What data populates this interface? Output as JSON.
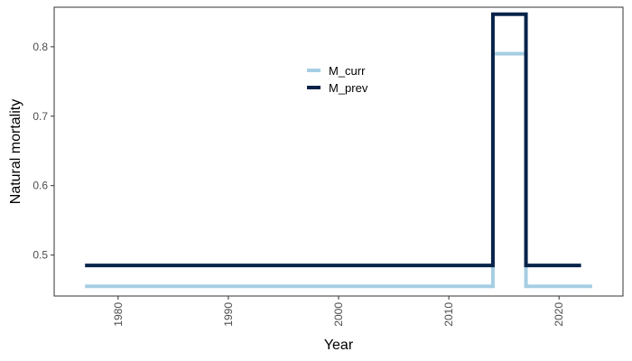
{
  "chart_data": {
    "type": "line",
    "step": "hv",
    "xlabel": "Year",
    "ylabel": "Natural mortality",
    "xlim": [
      1974.2,
      2025.8
    ],
    "ylim": [
      0.441,
      0.857
    ],
    "x_ticks": [
      1980,
      1990,
      2000,
      2010,
      2020
    ],
    "y_ticks": [
      0.5,
      0.6,
      0.7,
      0.8
    ],
    "y_tick_labels": [
      "0.5",
      "0.6",
      "0.7",
      "0.8"
    ],
    "grid": false,
    "legend": {
      "placement": "top-center"
    },
    "series": [
      {
        "name": "M_curr",
        "color": "#a6cee3",
        "points": [
          {
            "x": 1977,
            "y": 0.455
          },
          {
            "x": 2014,
            "y": 0.79
          },
          {
            "x": 2017,
            "y": 0.455
          },
          {
            "x": 2023,
            "y": 0.455
          }
        ]
      },
      {
        "name": "M_prev",
        "color": "#08234a",
        "points": [
          {
            "x": 1977,
            "y": 0.485
          },
          {
            "x": 2014,
            "y": 0.847
          },
          {
            "x": 2017,
            "y": 0.485
          },
          {
            "x": 2022,
            "y": 0.485
          }
        ]
      }
    ]
  }
}
